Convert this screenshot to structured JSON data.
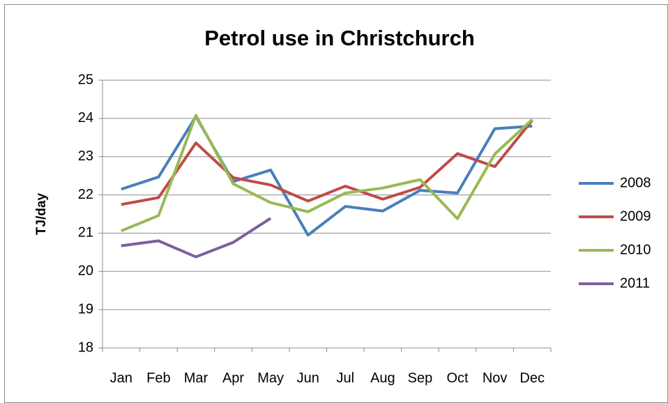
{
  "chart_data": {
    "type": "line",
    "title": "Petrol use in Christchurch",
    "y_label": "TJ/day",
    "categories": [
      "Jan",
      "Feb",
      "Mar",
      "Apr",
      "May",
      "Jun",
      "Jul",
      "Aug",
      "Sep",
      "Oct",
      "Nov",
      "Dec"
    ],
    "series": [
      {
        "name": "2008",
        "color": "#4a7ebb",
        "values": [
          22.15,
          22.47,
          24.05,
          22.35,
          22.65,
          20.95,
          21.7,
          21.58,
          22.12,
          22.05,
          23.73,
          23.8
        ]
      },
      {
        "name": "2009",
        "color": "#be4b48",
        "values": [
          21.75,
          21.93,
          23.36,
          22.45,
          22.26,
          21.84,
          22.23,
          21.89,
          22.2,
          23.08,
          22.74,
          23.95
        ]
      },
      {
        "name": "2010",
        "color": "#98b954",
        "values": [
          21.06,
          21.46,
          24.08,
          22.29,
          21.8,
          21.56,
          22.05,
          22.18,
          22.4,
          21.38,
          23.07,
          23.97
        ]
      },
      {
        "name": "2011",
        "color": "#7d5fa0",
        "values": [
          20.67,
          20.8,
          20.38,
          20.76,
          21.39,
          null,
          null,
          null,
          null,
          null,
          null,
          null
        ]
      }
    ],
    "ylim": [
      18,
      25
    ],
    "yticks": [
      18,
      19,
      20,
      21,
      22,
      23,
      24,
      25
    ],
    "grid": true,
    "legend": "right"
  }
}
